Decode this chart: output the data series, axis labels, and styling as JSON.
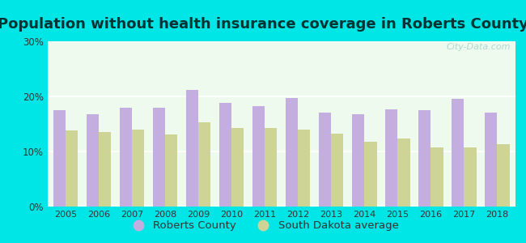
{
  "title": "Population without health insurance coverage in Roberts County",
  "years": [
    2005,
    2006,
    2007,
    2008,
    2009,
    2010,
    2011,
    2012,
    2013,
    2014,
    2015,
    2016,
    2017,
    2018
  ],
  "roberts_county": [
    17.5,
    16.7,
    17.9,
    18.0,
    21.2,
    18.8,
    18.3,
    19.7,
    17.1,
    16.7,
    17.6,
    17.5,
    19.5,
    17.0
  ],
  "sd_average": [
    13.8,
    13.5,
    14.0,
    13.1,
    15.3,
    14.3,
    14.3,
    13.9,
    13.3,
    11.8,
    12.3,
    10.8,
    10.7,
    11.3
  ],
  "bar_color_roberts": "#c4aee0",
  "bar_color_sd": "#cdd496",
  "background_outer": "#00e5e5",
  "background_plot": "#edfaed",
  "ylim": [
    0,
    30
  ],
  "yticks": [
    0,
    10,
    20,
    30
  ],
  "yticklabels": [
    "0%",
    "10%",
    "20%",
    "30%"
  ],
  "legend_roberts": "Roberts County",
  "legend_sd": "South Dakota average",
  "title_fontsize": 13,
  "watermark": "City-Data.com",
  "title_color": "#003333"
}
